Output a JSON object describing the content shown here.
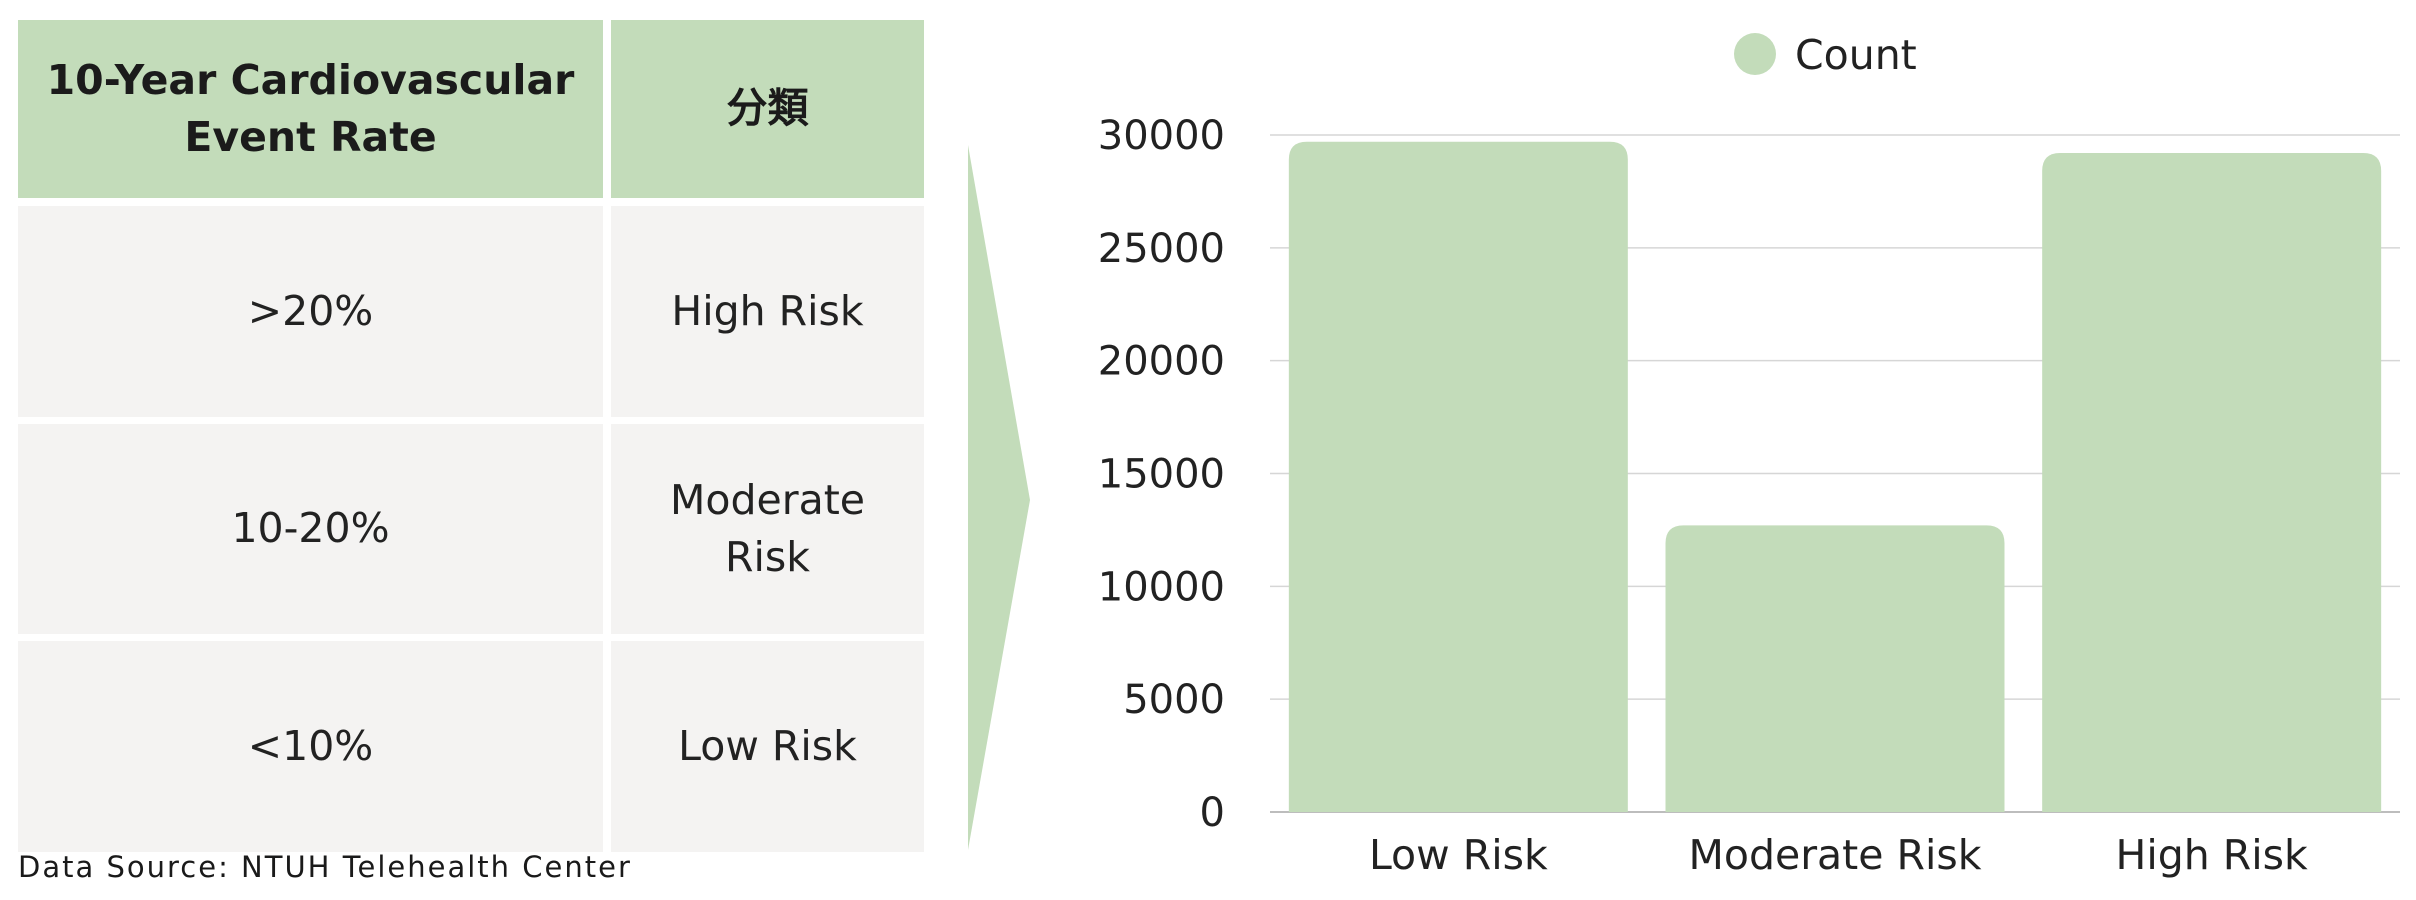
{
  "table": {
    "headers": [
      "10-Year Cardiovascular Event Rate",
      "分類"
    ],
    "rows": [
      [
        ">20%",
        "High Risk"
      ],
      [
        "10-20%",
        "Moderate Risk"
      ],
      [
        "<10%",
        "Low Risk"
      ]
    ],
    "header_color": "#c3dcba",
    "body_color": "#f4f3f2"
  },
  "source_text": "Data Source: NTUH Telehealth Center",
  "arrow_color": "#c3dcba",
  "chart_data": {
    "type": "bar",
    "categories": [
      "Low Risk",
      "Moderate Risk",
      "High Risk"
    ],
    "series": [
      {
        "name": "Count",
        "values": [
          29700,
          12700,
          29200
        ],
        "color": "#c3dcba"
      }
    ],
    "title": "",
    "xlabel": "",
    "ylabel": "",
    "ylim": [
      0,
      30000
    ],
    "yticks": [
      0,
      5000,
      10000,
      15000,
      20000,
      25000,
      30000
    ],
    "grid": true,
    "legend_position": "top-center"
  }
}
